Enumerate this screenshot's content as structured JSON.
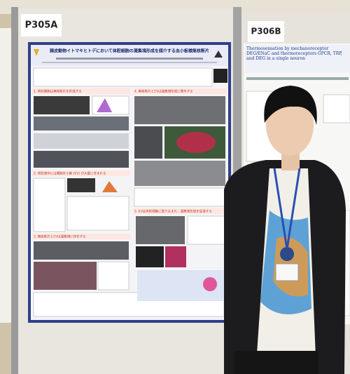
{
  "boards": {
    "left": "P305A",
    "right": "P306B"
  },
  "left_poster": {
    "title": "棘皮動物イトマキヒトデにおいて体腔細胞の凝集塊形成を媒介する血小板様無核断片",
    "sections": [
      "1. 体腔細胞は無核断片を形成する",
      "2. 体腔液中には細胞外小胞 (EV) が大量に含まれる",
      "3. 無核断片とEVは凝集塊に存在する",
      "4. 無核断片とEVは凝集塊形成に関与する",
      "5. EVは体腔細胞に取り込まれ、凝集塊形成を促進する"
    ]
  },
  "right_poster": {
    "title": "Thermosensation by mechanoreceptor DEG/ENaC and thermoreceptors GPCR, TRP, and DEG in a single neuron"
  }
}
